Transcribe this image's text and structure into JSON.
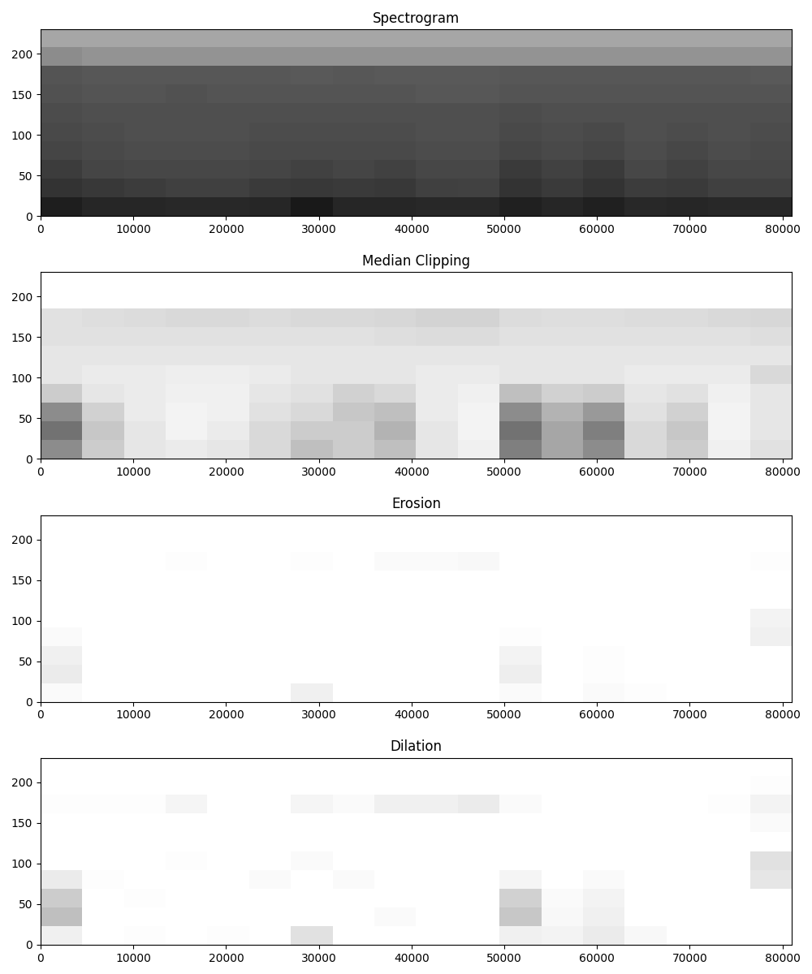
{
  "chart_data": [
    {
      "type": "heatmap",
      "title": "Spectrogram",
      "color": "gray",
      "cell_range": [
        0,
        1
      ],
      "xlim": [
        0,
        81000
      ],
      "ylim": [
        0,
        230
      ],
      "xticks": [
        0,
        10000,
        20000,
        30000,
        40000,
        50000,
        60000,
        70000,
        80000
      ],
      "yticks": [
        0,
        50,
        100,
        150,
        200
      ],
      "cells": [
        [
          0.12,
          0.15,
          0.15,
          0.16,
          0.16,
          0.15,
          0.1,
          0.15,
          0.15,
          0.16,
          0.16,
          0.13,
          0.15,
          0.13,
          0.16,
          0.15,
          0.16,
          0.16
        ],
        [
          0.2,
          0.22,
          0.24,
          0.25,
          0.25,
          0.23,
          0.22,
          0.23,
          0.22,
          0.25,
          0.26,
          0.2,
          0.23,
          0.2,
          0.24,
          0.23,
          0.25,
          0.25
        ],
        [
          0.24,
          0.27,
          0.28,
          0.28,
          0.28,
          0.27,
          0.26,
          0.27,
          0.26,
          0.28,
          0.28,
          0.23,
          0.26,
          0.23,
          0.28,
          0.26,
          0.28,
          0.28
        ],
        [
          0.27,
          0.29,
          0.3,
          0.3,
          0.3,
          0.29,
          0.29,
          0.29,
          0.29,
          0.3,
          0.3,
          0.27,
          0.29,
          0.27,
          0.3,
          0.28,
          0.3,
          0.29
        ],
        [
          0.29,
          0.3,
          0.31,
          0.31,
          0.31,
          0.3,
          0.3,
          0.3,
          0.3,
          0.31,
          0.31,
          0.29,
          0.3,
          0.29,
          0.31,
          0.3,
          0.31,
          0.3
        ],
        [
          0.3,
          0.31,
          0.31,
          0.31,
          0.31,
          0.31,
          0.31,
          0.31,
          0.31,
          0.31,
          0.31,
          0.3,
          0.31,
          0.31,
          0.31,
          0.31,
          0.31,
          0.31
        ],
        [
          0.32,
          0.33,
          0.33,
          0.32,
          0.33,
          0.33,
          0.33,
          0.33,
          0.33,
          0.34,
          0.34,
          0.33,
          0.33,
          0.33,
          0.33,
          0.33,
          0.33,
          0.33
        ],
        [
          0.33,
          0.34,
          0.34,
          0.34,
          0.34,
          0.34,
          0.35,
          0.34,
          0.35,
          0.35,
          0.35,
          0.34,
          0.34,
          0.34,
          0.34,
          0.34,
          0.34,
          0.35
        ],
        [
          0.55,
          0.58,
          0.58,
          0.58,
          0.58,
          0.58,
          0.58,
          0.58,
          0.58,
          0.58,
          0.58,
          0.58,
          0.58,
          0.58,
          0.58,
          0.58,
          0.58,
          0.58
        ],
        [
          0.65,
          0.65,
          0.65,
          0.65,
          0.65,
          0.65,
          0.65,
          0.65,
          0.65,
          0.65,
          0.65,
          0.65,
          0.65,
          0.65,
          0.65,
          0.65,
          0.65,
          0.65
        ]
      ]
    },
    {
      "type": "heatmap",
      "title": "Median Clipping",
      "color": "gray_r",
      "cell_range": [
        0,
        1
      ],
      "xlim": [
        0,
        81000
      ],
      "ylim": [
        0,
        230
      ],
      "xticks": [
        0,
        10000,
        20000,
        30000,
        40000,
        50000,
        60000,
        70000,
        80000
      ],
      "yticks": [
        0,
        50,
        100,
        150,
        200
      ],
      "cells": [
        [
          0.45,
          0.2,
          0.1,
          0.08,
          0.1,
          0.15,
          0.25,
          0.2,
          0.25,
          0.1,
          0.06,
          0.5,
          0.35,
          0.45,
          0.15,
          0.2,
          0.06,
          0.12
        ],
        [
          0.55,
          0.22,
          0.1,
          0.05,
          0.08,
          0.15,
          0.2,
          0.2,
          0.3,
          0.1,
          0.05,
          0.55,
          0.35,
          0.5,
          0.15,
          0.22,
          0.05,
          0.1
        ],
        [
          0.45,
          0.18,
          0.08,
          0.05,
          0.06,
          0.12,
          0.15,
          0.22,
          0.25,
          0.08,
          0.05,
          0.45,
          0.3,
          0.4,
          0.12,
          0.18,
          0.05,
          0.1
        ],
        [
          0.2,
          0.1,
          0.08,
          0.06,
          0.06,
          0.1,
          0.12,
          0.18,
          0.15,
          0.08,
          0.06,
          0.25,
          0.18,
          0.2,
          0.1,
          0.12,
          0.06,
          0.1
        ],
        [
          0.1,
          0.08,
          0.08,
          0.07,
          0.07,
          0.08,
          0.1,
          0.1,
          0.1,
          0.08,
          0.08,
          0.1,
          0.1,
          0.1,
          0.08,
          0.08,
          0.08,
          0.15
        ],
        [
          0.1,
          0.1,
          0.1,
          0.1,
          0.1,
          0.1,
          0.1,
          0.1,
          0.1,
          0.1,
          0.1,
          0.1,
          0.1,
          0.1,
          0.1,
          0.1,
          0.1,
          0.1
        ],
        [
          0.12,
          0.12,
          0.12,
          0.12,
          0.12,
          0.12,
          0.12,
          0.12,
          0.13,
          0.14,
          0.14,
          0.12,
          0.12,
          0.12,
          0.12,
          0.12,
          0.12,
          0.13
        ],
        [
          0.12,
          0.13,
          0.14,
          0.15,
          0.15,
          0.14,
          0.15,
          0.15,
          0.16,
          0.17,
          0.17,
          0.14,
          0.13,
          0.13,
          0.14,
          0.14,
          0.15,
          0.16
        ],
        [
          0,
          0,
          0,
          0,
          0,
          0,
          0,
          0,
          0,
          0,
          0,
          0,
          0,
          0,
          0,
          0,
          0,
          0
        ],
        [
          0,
          0,
          0,
          0,
          0,
          0,
          0,
          0,
          0,
          0,
          0,
          0,
          0,
          0,
          0,
          0,
          0,
          0
        ]
      ]
    },
    {
      "type": "heatmap",
      "title": "Erosion",
      "color": "gray_r",
      "cell_range": [
        0,
        1
      ],
      "xlim": [
        0,
        81000
      ],
      "ylim": [
        0,
        230
      ],
      "xticks": [
        0,
        10000,
        20000,
        30000,
        40000,
        50000,
        60000,
        70000,
        80000
      ],
      "yticks": [
        0,
        50,
        100,
        150,
        200
      ],
      "cells": [
        [
          0.02,
          0,
          0,
          0,
          0,
          0,
          0.06,
          0,
          0,
          0,
          0,
          0.02,
          0,
          0.02,
          0.01,
          0,
          0,
          0
        ],
        [
          0.08,
          0,
          0,
          0,
          0,
          0,
          0,
          0,
          0,
          0,
          0,
          0.07,
          0,
          0.01,
          0,
          0,
          0,
          0
        ],
        [
          0.06,
          0,
          0,
          0,
          0,
          0,
          0,
          0,
          0,
          0,
          0,
          0.05,
          0,
          0.01,
          0,
          0,
          0,
          0
        ],
        [
          0.02,
          0,
          0,
          0,
          0,
          0,
          0,
          0,
          0,
          0,
          0,
          0.01,
          0,
          0,
          0,
          0,
          0,
          0.06
        ],
        [
          0,
          0,
          0,
          0,
          0,
          0,
          0,
          0,
          0,
          0,
          0,
          0,
          0,
          0,
          0,
          0,
          0,
          0.05
        ],
        [
          0,
          0,
          0,
          0,
          0,
          0,
          0,
          0,
          0,
          0,
          0,
          0,
          0,
          0,
          0,
          0,
          0,
          0
        ],
        [
          0,
          0,
          0,
          0,
          0,
          0,
          0,
          0,
          0,
          0,
          0,
          0,
          0,
          0,
          0,
          0,
          0,
          0
        ],
        [
          0,
          0,
          0,
          0.01,
          0,
          0,
          0.01,
          0,
          0.02,
          0.02,
          0.03,
          0,
          0,
          0,
          0,
          0,
          0,
          0.01
        ],
        [
          0,
          0,
          0,
          0,
          0,
          0,
          0,
          0,
          0,
          0,
          0,
          0,
          0,
          0,
          0,
          0,
          0,
          0
        ],
        [
          0,
          0,
          0,
          0,
          0,
          0,
          0,
          0,
          0,
          0,
          0,
          0,
          0,
          0,
          0,
          0,
          0,
          0
        ]
      ]
    },
    {
      "type": "heatmap",
      "title": "Dilation",
      "color": "gray_r",
      "cell_range": [
        0,
        1
      ],
      "xlim": [
        0,
        81000
      ],
      "ylim": [
        0,
        230
      ],
      "xticks": [
        0,
        10000,
        20000,
        30000,
        40000,
        50000,
        60000,
        70000,
        80000
      ],
      "yticks": [
        0,
        50,
        100,
        150,
        200
      ],
      "cells": [
        [
          0.06,
          0,
          0.01,
          0,
          0.01,
          0,
          0.12,
          0,
          0,
          0,
          0,
          0.06,
          0.05,
          0.08,
          0.03,
          0,
          0,
          0
        ],
        [
          0.25,
          0,
          0,
          0,
          0,
          0,
          0,
          0,
          0.02,
          0,
          0,
          0.22,
          0.03,
          0.06,
          0,
          0,
          0,
          0
        ],
        [
          0.2,
          0,
          0.01,
          0,
          0,
          0,
          0,
          0,
          0,
          0,
          0,
          0.18,
          0.02,
          0.05,
          0,
          0,
          0,
          0
        ],
        [
          0.08,
          0.01,
          0,
          0,
          0,
          0.02,
          0,
          0.02,
          0,
          0,
          0,
          0.04,
          0,
          0.02,
          0,
          0,
          0,
          0.1
        ],
        [
          0,
          0,
          0,
          0.01,
          0,
          0,
          0.02,
          0,
          0,
          0,
          0,
          0,
          0,
          0,
          0,
          0,
          0,
          0.12
        ],
        [
          0,
          0,
          0,
          0,
          0,
          0,
          0,
          0,
          0,
          0,
          0,
          0,
          0,
          0,
          0,
          0,
          0,
          0
        ],
        [
          0,
          0,
          0,
          0,
          0,
          0,
          0,
          0,
          0,
          0,
          0,
          0,
          0,
          0,
          0,
          0,
          0,
          0.02
        ],
        [
          0.01,
          0.01,
          0.01,
          0.04,
          0,
          0,
          0.04,
          0.02,
          0.06,
          0.06,
          0.08,
          0.02,
          0,
          0,
          0,
          0,
          0.01,
          0.05
        ],
        [
          0,
          0,
          0,
          0,
          0,
          0,
          0,
          0,
          0,
          0,
          0,
          0,
          0,
          0,
          0,
          0,
          0,
          0.01
        ],
        [
          0,
          0,
          0,
          0,
          0,
          0,
          0,
          0,
          0,
          0,
          0,
          0,
          0,
          0,
          0,
          0,
          0,
          0
        ]
      ]
    }
  ]
}
